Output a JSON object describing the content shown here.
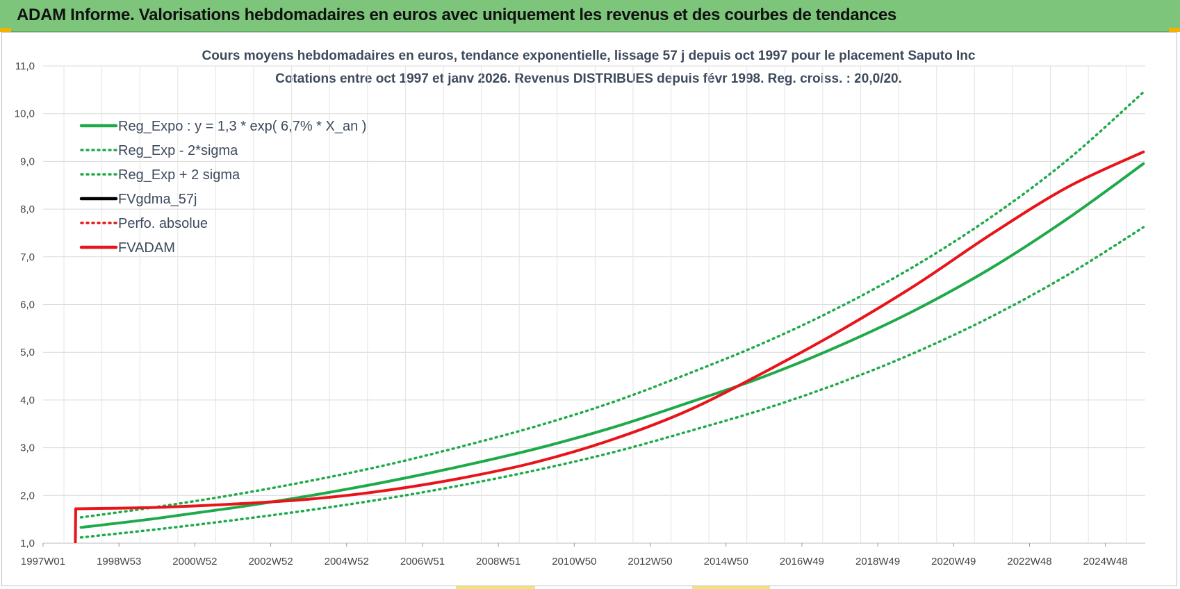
{
  "header": {
    "title": "ADAM Informe. Valorisations hebdomadaires en euros avec uniquement les revenus et des courbes de tendances"
  },
  "chart_data": {
    "type": "line",
    "title_line1": "Cours moyens hebdomadaires en euros, tendance exponentielle, lissage 57 j depuis oct 1997 pour le placement Saputo Inc",
    "title_line2": "Cotations entre oct 1997 et janv 2026. Revenus DISTRIBUES depuis févr 1998. Reg. croiss. : 20,0/20.",
    "xlabel": "",
    "ylabel": "",
    "ylim": [
      1.0,
      11.0
    ],
    "xlim": [
      1997.0,
      2026.05
    ],
    "y_ticks": [
      "1,0",
      "2,0",
      "3,0",
      "4,0",
      "5,0",
      "6,0",
      "7,0",
      "8,0",
      "9,0",
      "10,0",
      "11,0"
    ],
    "x_ticks": [
      {
        "label": "1997W01",
        "x": 1997.0
      },
      {
        "label": "1998W53",
        "x": 1999.0
      },
      {
        "label": "2000W52",
        "x": 2001.0
      },
      {
        "label": "2002W52",
        "x": 2003.0
      },
      {
        "label": "2004W52",
        "x": 2005.0
      },
      {
        "label": "2006W51",
        "x": 2007.0
      },
      {
        "label": "2008W51",
        "x": 2009.0
      },
      {
        "label": "2010W50",
        "x": 2011.0
      },
      {
        "label": "2012W50",
        "x": 2013.0
      },
      {
        "label": "2014W50",
        "x": 2015.0
      },
      {
        "label": "2016W49",
        "x": 2017.0
      },
      {
        "label": "2018W49",
        "x": 2019.0
      },
      {
        "label": "2020W49",
        "x": 2021.0
      },
      {
        "label": "2022W48",
        "x": 2023.0
      },
      {
        "label": "2024W48",
        "x": 2025.0
      }
    ],
    "grid": true,
    "legend_position": "top-left",
    "series": [
      {
        "name": "Reg_Expo : y = 1,3 * exp( 6,7% *  X_an )",
        "color": "#1faa4a",
        "style": "solid",
        "x": [
          1998.0,
          2000.0,
          2002.0,
          2004.0,
          2006.0,
          2008.0,
          2010.0,
          2012.0,
          2014.0,
          2016.0,
          2018.0,
          2020.0,
          2022.0,
          2024.0,
          2026.0
        ],
        "values": [
          1.33,
          1.52,
          1.74,
          1.99,
          2.28,
          2.61,
          2.98,
          3.42,
          3.94,
          4.49,
          5.14,
          5.89,
          6.77,
          7.8,
          8.95
        ]
      },
      {
        "name": "Reg_Exp - 2*sigma",
        "color": "#1faa4a",
        "style": "dotted",
        "x": [
          1998.0,
          2000.0,
          2002.0,
          2004.0,
          2006.0,
          2008.0,
          2010.0,
          2012.0,
          2014.0,
          2016.0,
          2018.0,
          2020.0,
          2022.0,
          2024.0,
          2026.0
        ],
        "values": [
          1.12,
          1.29,
          1.48,
          1.69,
          1.93,
          2.21,
          2.53,
          2.9,
          3.34,
          3.81,
          4.36,
          5.0,
          5.75,
          6.62,
          7.62
        ]
      },
      {
        "name": "Reg_Exp + 2 sigma",
        "color": "#1faa4a",
        "style": "dotted",
        "x": [
          1998.0,
          2000.0,
          2002.0,
          2004.0,
          2006.0,
          2008.0,
          2010.0,
          2012.0,
          2014.0,
          2016.0,
          2018.0,
          2020.0,
          2022.0,
          2024.0,
          2026.0
        ],
        "values": [
          1.54,
          1.76,
          2.01,
          2.3,
          2.63,
          3.02,
          3.45,
          3.95,
          4.55,
          5.2,
          5.95,
          6.82,
          7.84,
          9.03,
          10.45
        ]
      },
      {
        "name": "FVgdma_57j",
        "color": "#000000",
        "style": "solid",
        "x": [],
        "values": []
      },
      {
        "name": "Perfo. absolue",
        "color": "#e01818",
        "style": "dotted",
        "x": [],
        "values": []
      },
      {
        "name": "FVADAM",
        "color": "#e8141a",
        "style": "solid",
        "x": [
          1997.85,
          1997.86,
          2000.0,
          2002.0,
          2004.0,
          2006.0,
          2008.0,
          2010.0,
          2012.0,
          2014.0,
          2016.0,
          2018.0,
          2020.0,
          2022.0,
          2024.0,
          2026.0
        ],
        "values": [
          1.0,
          1.72,
          1.75,
          1.82,
          1.92,
          2.1,
          2.36,
          2.7,
          3.17,
          3.78,
          4.58,
          5.45,
          6.41,
          7.48,
          8.46,
          9.2
        ]
      }
    ]
  }
}
